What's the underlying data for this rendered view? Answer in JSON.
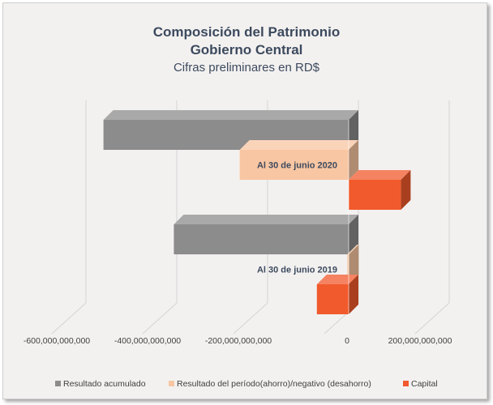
{
  "chart_data": {
    "type": "bar",
    "orientation": "horizontal",
    "style": "3d",
    "title": "Composición del Patrimonio",
    "title_line2": "Gobierno Central",
    "subtitle": "Cifras preliminares en RD$",
    "categories": [
      "Al 30 de junio 2020",
      "Al 30 de junio 2019"
    ],
    "series": [
      {
        "name": "Resultado acumulado",
        "color": "#8c8c8c",
        "values": [
          -540000000000,
          -385000000000
        ]
      },
      {
        "name": "Resultado del período(ahorro)/negativo (desahorro)",
        "color": "#f8c6a2",
        "values": [
          -240000000000,
          -3000000000
        ]
      },
      {
        "name": "Capital",
        "color": "#f15a2c",
        "values": [
          115000000000,
          -70000000000
        ]
      }
    ],
    "xlim": [
      -600000000000,
      200000000000
    ],
    "ticks": [
      -600000000000,
      -400000000000,
      -200000000000,
      0,
      200000000000
    ],
    "tick_labels": [
      "-600,000,000,000",
      "-400,000,000,000",
      "-200,000,000,000",
      "0",
      "200,000,000,000"
    ],
    "grid": true,
    "legend_position": "bottom"
  }
}
